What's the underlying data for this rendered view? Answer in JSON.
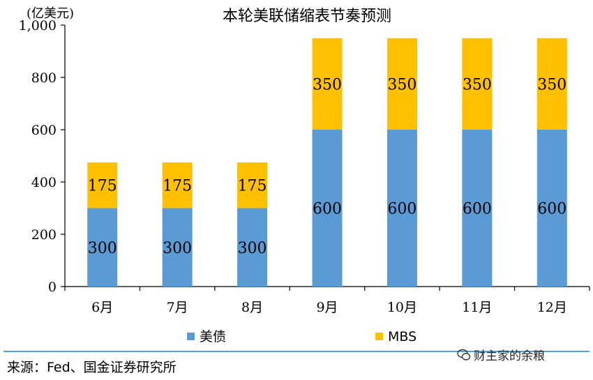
{
  "chart_data": {
    "type": "bar",
    "stacked": true,
    "title": "本轮美联储缩表节奏预测",
    "unit_label": "(亿美元)",
    "categories": [
      "6月",
      "7月",
      "8月",
      "9月",
      "10月",
      "11月",
      "12月"
    ],
    "series": [
      {
        "name": "美债",
        "color": "#5b9bd5",
        "values": [
          300,
          300,
          300,
          600,
          600,
          600,
          600
        ]
      },
      {
        "name": "MBS",
        "color": "#ffc000",
        "values": [
          175,
          175,
          175,
          350,
          350,
          350,
          350
        ]
      }
    ],
    "ylim": [
      0,
      1000
    ],
    "yticks": [
      0,
      200,
      400,
      600,
      800,
      1000
    ],
    "ytick_labels": [
      "0",
      "200",
      "400",
      "600",
      "800",
      "1,000"
    ],
    "grid": false,
    "legend_position": "bottom"
  },
  "footer": {
    "source": "来源：Fed、国金证券研究所",
    "watermark": "财主家的余粮",
    "separator_color": "#4aa3df"
  }
}
